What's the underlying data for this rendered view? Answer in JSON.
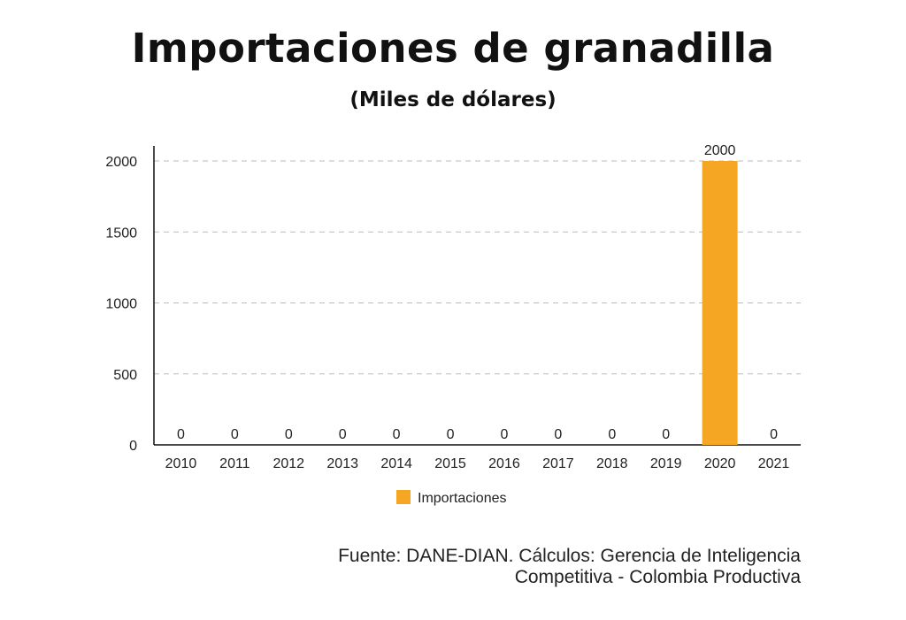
{
  "chart_data": {
    "type": "bar",
    "title": "Importaciones de granadilla",
    "subtitle": "(Miles de dólares)",
    "xlabel": "",
    "ylabel": "",
    "categories": [
      "2010",
      "2011",
      "2012",
      "2013",
      "2014",
      "2015",
      "2016",
      "2017",
      "2018",
      "2019",
      "2020",
      "2021"
    ],
    "series": [
      {
        "name": "Importaciones",
        "values": [
          0,
          0,
          0,
          0,
          0,
          0,
          0,
          0,
          0,
          0,
          2000,
          0
        ],
        "color": "#F5A623"
      }
    ],
    "ylim": [
      0,
      2000
    ],
    "yticks": [
      0,
      500,
      1000,
      1500,
      2000
    ],
    "grid": true,
    "legend": "bottom",
    "data_labels": true
  },
  "source": {
    "line1": "Fuente: DANE-DIAN. Cálculos: Gerencia de Inteligencia",
    "line2": "Competitiva - Colombia Productiva"
  }
}
